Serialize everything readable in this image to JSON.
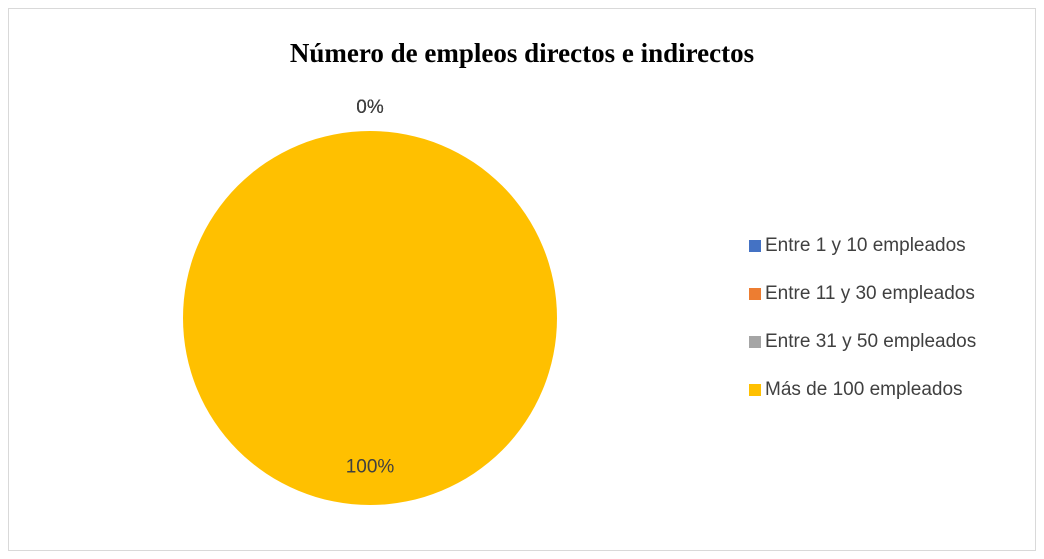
{
  "chart_data": {
    "type": "pie",
    "title": "Número de empleos directos e indirectos",
    "categories": [
      "Entre 1 y 10 empleados",
      "Entre 11 y 30 empleados",
      "Entre 31 y 50 empleados",
      "Más de 100 empleados"
    ],
    "values": [
      0,
      0,
      0,
      100
    ],
    "value_labels": [
      "0%",
      "0%",
      "0%",
      "100%"
    ],
    "colors": [
      "#4472c4",
      "#ed7d31",
      "#a5a5a5",
      "#ffc000"
    ],
    "legend": "right"
  }
}
